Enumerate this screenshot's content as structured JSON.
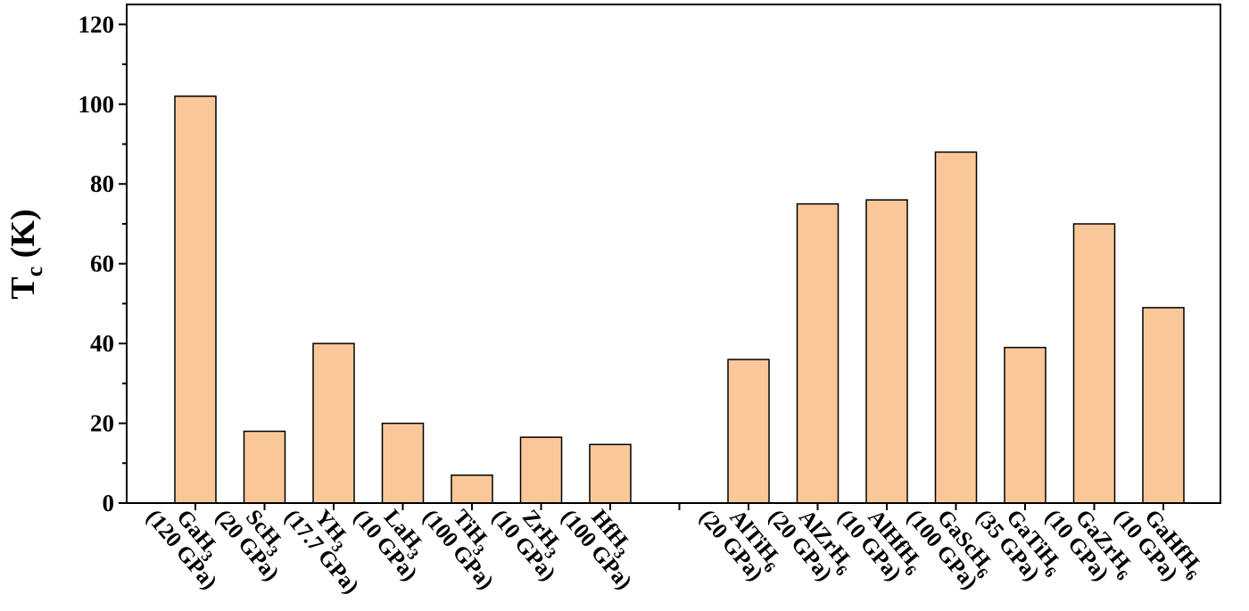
{
  "chart_data": {
    "type": "bar",
    "ylabel": {
      "main": "T",
      "sub": "c",
      "unit": " (K)"
    },
    "ylim": [
      0,
      125
    ],
    "yticks": [
      0,
      20,
      40,
      60,
      80,
      100,
      120
    ],
    "bar_color": "#fac898",
    "bar_stroke": "#000000",
    "categories": [
      {
        "formula": "GaH",
        "sub": "3",
        "pressure": "(120 GPa)",
        "value": 102
      },
      {
        "formula": "ScH",
        "sub": "3",
        "pressure": "(20 GPa)",
        "value": 18
      },
      {
        "formula": "YH",
        "sub": "3",
        "pressure": "(17.7 GPa)",
        "value": 40
      },
      {
        "formula": "LaH",
        "sub": "3",
        "pressure": "(10 GPa)",
        "value": 20
      },
      {
        "formula": "TiH",
        "sub": "3",
        "pressure": "(100 GPa)",
        "value": 7
      },
      {
        "formula": "ZrH",
        "sub": "3",
        "pressure": "(10 GPa)",
        "value": 16.5
      },
      {
        "formula": "HfH",
        "sub": "3",
        "pressure": "(100 GPa)",
        "value": 14.7
      },
      {
        "formula": "AlTiH",
        "sub": "6",
        "pressure": "(20 GPa)",
        "value": 36
      },
      {
        "formula": "AlZrH",
        "sub": "6",
        "pressure": "(20 GPa)",
        "value": 75
      },
      {
        "formula": "AlHfH",
        "sub": "6",
        "pressure": "(10 GPa)",
        "value": 76
      },
      {
        "formula": "GaScH",
        "sub": "6",
        "pressure": "(100 GPa)",
        "value": 88
      },
      {
        "formula": "GaTiH",
        "sub": "6",
        "pressure": "(35 GPa)",
        "value": 39
      },
      {
        "formula": "GaZrH",
        "sub": "6",
        "pressure": "(10 GPa)",
        "value": 70
      },
      {
        "formula": "GaHfH",
        "sub": "6",
        "pressure": "(10 GPa)",
        "value": 49
      }
    ]
  }
}
